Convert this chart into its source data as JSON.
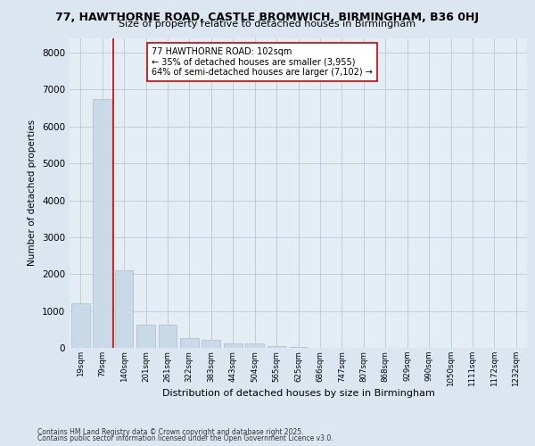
{
  "title": "77, HAWTHORNE ROAD, CASTLE BROMWICH, BIRMINGHAM, B36 0HJ",
  "subtitle": "Size of property relative to detached houses in Birmingham",
  "xlabel": "Distribution of detached houses by size in Birmingham",
  "ylabel": "Number of detached properties",
  "bar_color": "#c9d9e8",
  "bar_edgecolor": "#a8bece",
  "grid_color": "#b8c8d8",
  "background_color": "#dce6f0",
  "plot_bg_color": "#e4ecf4",
  "annotation_text": "77 HAWTHORNE ROAD: 102sqm\n← 35% of detached houses are smaller (3,955)\n64% of semi-detached houses are larger (7,102) →",
  "vline_x_index": 1.5,
  "vline_color": "#cc0000",
  "annotation_box_color": "#cc0000",
  "categories": [
    "19sqm",
    "79sqm",
    "140sqm",
    "201sqm",
    "261sqm",
    "322sqm",
    "383sqm",
    "443sqm",
    "504sqm",
    "565sqm",
    "625sqm",
    "686sqm",
    "747sqm",
    "807sqm",
    "868sqm",
    "929sqm",
    "990sqm",
    "1050sqm",
    "1111sqm",
    "1172sqm",
    "1232sqm"
  ],
  "values": [
    1200,
    6750,
    2100,
    620,
    620,
    270,
    220,
    110,
    110,
    60,
    25,
    10,
    5,
    3,
    2,
    2,
    1,
    1,
    1,
    1,
    1
  ],
  "ylim": [
    0,
    8400
  ],
  "yticks": [
    0,
    1000,
    2000,
    3000,
    4000,
    5000,
    6000,
    7000,
    8000
  ],
  "footer1": "Contains HM Land Registry data © Crown copyright and database right 2025.",
  "footer2": "Contains public sector information licensed under the Open Government Licence v3.0."
}
